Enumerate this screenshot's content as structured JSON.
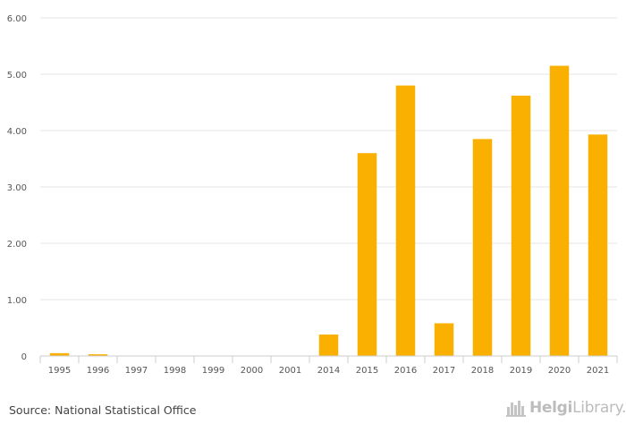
{
  "chart_data": {
    "type": "bar",
    "categories": [
      "1995",
      "1996",
      "1997",
      "1998",
      "1999",
      "2000",
      "2001",
      "2014",
      "2015",
      "2016",
      "2017",
      "2018",
      "2019",
      "2020",
      "2021"
    ],
    "values": [
      0.05,
      0.03,
      0,
      0,
      0,
      0,
      0,
      0.38,
      3.6,
      4.8,
      0.58,
      3.85,
      4.62,
      5.15,
      3.93
    ],
    "title": "",
    "xlabel": "",
    "ylabel": "",
    "ylim": [
      0,
      6
    ],
    "yticks": [
      0,
      1,
      2,
      3,
      4,
      5,
      6
    ],
    "ytick_labels": [
      "0",
      "1.00",
      "2.00",
      "3.00",
      "4.00",
      "5.00",
      "6.00"
    ],
    "grid": true,
    "bar_color": "#f9b000"
  },
  "source": "Source: National Statistical Office",
  "logo": {
    "brand": "Helgi",
    "suffix": "Library."
  }
}
